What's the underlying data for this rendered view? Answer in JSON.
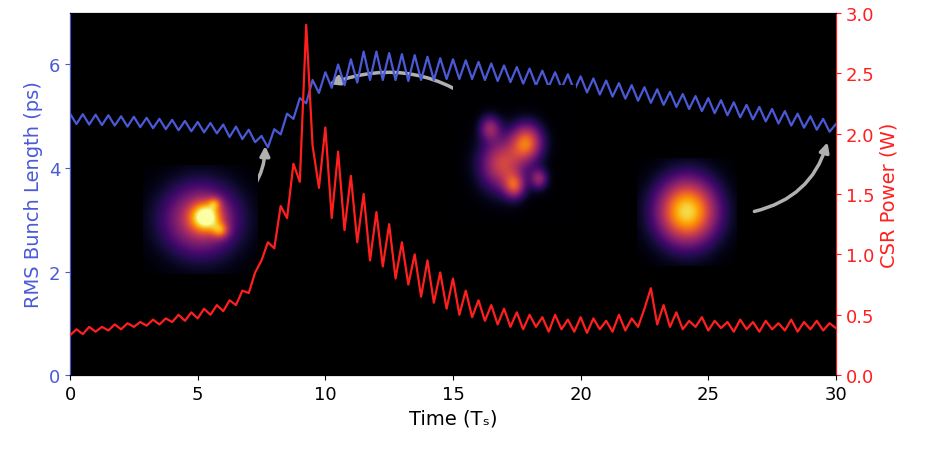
{
  "chart_data": {
    "type": "line",
    "x_label": "Time (Tₛ)",
    "y_label": "RMS Bunch Length (ps)",
    "y2_label": "CSR Power (W)",
    "xlim": [
      0,
      30
    ],
    "xticks": [
      0,
      5,
      10,
      15,
      20,
      25,
      30
    ],
    "ylim": [
      0,
      7
    ],
    "yticks": [
      0,
      2,
      4,
      6
    ],
    "y2lim": [
      0,
      3
    ],
    "y2ticks": [
      {
        "value": 0,
        "label": "0.0"
      },
      {
        "value": 0.5,
        "label": "0.5"
      },
      {
        "value": 1,
        "label": "1.0"
      },
      {
        "value": 1.5,
        "label": "1.5"
      },
      {
        "value": 2,
        "label": "2.0"
      },
      {
        "value": 2.5,
        "label": "2.5"
      },
      {
        "value": 3,
        "label": "3.0"
      }
    ],
    "x": [
      0,
      0.25,
      0.5,
      0.75,
      1,
      1.25,
      1.5,
      1.75,
      2,
      2.25,
      2.5,
      2.75,
      3,
      3.25,
      3.5,
      3.75,
      4,
      4.25,
      4.5,
      4.75,
      5,
      5.25,
      5.5,
      5.75,
      6,
      6.25,
      6.5,
      6.75,
      7,
      7.25,
      7.5,
      7.75,
      8,
      8.25,
      8.5,
      8.75,
      9,
      9.25,
      9.5,
      9.75,
      10,
      10.25,
      10.5,
      10.75,
      11,
      11.25,
      11.5,
      11.75,
      12,
      12.25,
      12.5,
      12.75,
      13,
      13.25,
      13.5,
      13.75,
      14,
      14.25,
      14.5,
      14.75,
      15,
      15.25,
      15.5,
      15.75,
      16,
      16.25,
      16.5,
      16.75,
      17,
      17.25,
      17.5,
      17.75,
      18,
      18.25,
      18.5,
      18.75,
      19,
      19.25,
      19.5,
      19.75,
      20,
      20.25,
      20.5,
      20.75,
      21,
      21.25,
      21.5,
      21.75,
      22,
      22.25,
      22.5,
      22.75,
      23,
      23.25,
      23.5,
      23.75,
      24,
      24.25,
      24.5,
      24.75,
      25,
      25.25,
      25.5,
      25.75,
      26,
      26.25,
      26.5,
      26.75,
      27,
      27.25,
      27.5,
      27.75,
      28,
      28.25,
      28.5,
      28.75,
      29,
      29.25,
      29.5,
      29.75,
      30
    ],
    "series": [
      {
        "name": "RMS Bunch Length",
        "color": "#4a5ad6",
        "axis": "y",
        "values": [
          5.05,
          4.85,
          5.04,
          4.84,
          5.03,
          4.83,
          5.02,
          4.82,
          5.0,
          4.8,
          4.99,
          4.79,
          4.97,
          4.77,
          4.95,
          4.75,
          4.93,
          4.73,
          4.91,
          4.71,
          4.89,
          4.69,
          4.87,
          4.67,
          4.84,
          4.6,
          4.8,
          4.56,
          4.74,
          4.5,
          4.62,
          4.4,
          4.75,
          4.65,
          5.05,
          4.95,
          5.35,
          5.25,
          5.7,
          5.45,
          5.85,
          5.55,
          6.0,
          5.6,
          6.1,
          5.65,
          6.25,
          5.7,
          6.25,
          5.7,
          6.22,
          5.7,
          6.2,
          5.68,
          6.18,
          5.7,
          6.15,
          5.7,
          6.12,
          5.72,
          6.1,
          5.72,
          6.08,
          5.72,
          6.05,
          5.7,
          6.02,
          5.68,
          5.98,
          5.66,
          5.95,
          5.63,
          5.92,
          5.6,
          5.88,
          5.57,
          5.85,
          5.54,
          5.81,
          5.5,
          5.77,
          5.46,
          5.73,
          5.42,
          5.69,
          5.38,
          5.64,
          5.34,
          5.6,
          5.3,
          5.56,
          5.26,
          5.52,
          5.22,
          5.47,
          5.18,
          5.43,
          5.14,
          5.39,
          5.1,
          5.35,
          5.06,
          5.31,
          5.02,
          5.27,
          4.98,
          5.22,
          4.94,
          5.18,
          4.9,
          5.14,
          4.86,
          5.1,
          4.82,
          5.05,
          4.78,
          5.0,
          4.74,
          4.95,
          4.7,
          4.85
        ]
      },
      {
        "name": "CSR Power",
        "color": "#ff1f1f",
        "axis": "y2",
        "values": [
          0.33,
          0.38,
          0.34,
          0.4,
          0.36,
          0.4,
          0.37,
          0.42,
          0.38,
          0.43,
          0.4,
          0.44,
          0.41,
          0.46,
          0.42,
          0.47,
          0.44,
          0.5,
          0.45,
          0.52,
          0.47,
          0.55,
          0.5,
          0.58,
          0.53,
          0.62,
          0.58,
          0.7,
          0.68,
          0.85,
          0.95,
          1.1,
          1.05,
          1.4,
          1.3,
          1.75,
          1.6,
          2.9,
          1.9,
          1.55,
          2.05,
          1.3,
          1.85,
          1.2,
          1.65,
          1.1,
          1.5,
          0.95,
          1.35,
          0.9,
          1.25,
          0.8,
          1.1,
          0.75,
          1.0,
          0.65,
          0.95,
          0.6,
          0.85,
          0.55,
          0.8,
          0.5,
          0.7,
          0.48,
          0.62,
          0.45,
          0.58,
          0.42,
          0.55,
          0.4,
          0.52,
          0.38,
          0.5,
          0.4,
          0.48,
          0.36,
          0.5,
          0.38,
          0.46,
          0.36,
          0.48,
          0.35,
          0.47,
          0.38,
          0.45,
          0.36,
          0.5,
          0.37,
          0.47,
          0.4,
          0.55,
          0.72,
          0.42,
          0.58,
          0.4,
          0.52,
          0.38,
          0.45,
          0.4,
          0.48,
          0.37,
          0.45,
          0.39,
          0.44,
          0.36,
          0.46,
          0.38,
          0.44,
          0.36,
          0.45,
          0.38,
          0.43,
          0.37,
          0.46,
          0.36,
          0.44,
          0.38,
          0.45,
          0.37,
          0.43,
          0.39
        ]
      }
    ]
  }
}
